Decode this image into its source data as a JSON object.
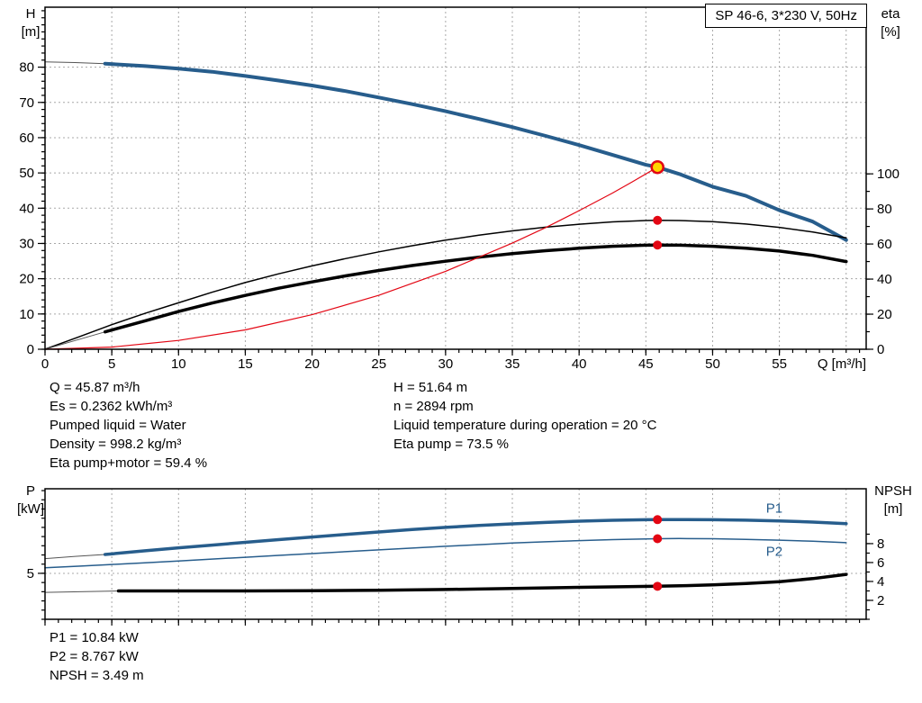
{
  "title_box": "SP 46-6, 3*230 V, 50Hz",
  "info_top": {
    "left": [
      "Q = 45.87 m³/h",
      "Es = 0.2362 kWh/m³",
      "Pumped liquid = Water",
      "Density = 998.2 kg/m³",
      "Eta pump+motor = 59.4 %"
    ],
    "right": [
      "H = 51.64 m",
      "n = 2894 rpm",
      "Liquid temperature during operation = 20 °C",
      "Eta pump = 73.5 %"
    ]
  },
  "info_bottom": [
    "P1 = 10.84 kW",
    "P2 = 8.767 kW",
    "NPSH = 3.49 m"
  ],
  "colors": {
    "blue": "#275d8c",
    "black": "#000000",
    "red": "#e30613",
    "gray": "#555555",
    "grid": "#a8a8a8",
    "marker_fill": "#ffd500"
  },
  "chart_data": [
    {
      "type": "line",
      "name": "performance",
      "x_axis": {
        "label": "Q [m³/h]",
        "min": 0,
        "max": 61.5,
        "labeled_ticks": [
          0,
          5,
          10,
          15,
          20,
          25,
          30,
          35,
          40,
          45,
          50,
          55
        ],
        "minor_step": 1,
        "grid_ticks": [
          5,
          10,
          15,
          20,
          25,
          30,
          35,
          40,
          45,
          50,
          55,
          60
        ],
        "show_labels": true
      },
      "y_left": {
        "label": "H",
        "unit": "[m]",
        "min": 0,
        "max": 97,
        "labeled_ticks": [
          0,
          10,
          20,
          30,
          40,
          50,
          60,
          70,
          80
        ],
        "minor_step": 2,
        "minor_max": 96,
        "grid_ticks": [
          10,
          20,
          30,
          40,
          50,
          60,
          70,
          80
        ]
      },
      "y_right": {
        "label": "eta",
        "unit": "[%]",
        "min": 0,
        "max": 195,
        "labeled_ticks": [
          0,
          20,
          40,
          60,
          80,
          100
        ],
        "minor_step": 10,
        "minor_max": 100
      },
      "series": [
        {
          "name": "head-curve-extension",
          "axis": "left",
          "color": "gray",
          "width": 1,
          "points": [
            [
              0,
              81.5
            ],
            [
              2.25,
              81.3
            ],
            [
              4.5,
              81.0
            ]
          ]
        },
        {
          "name": "head-curve",
          "axis": "left",
          "color": "blue",
          "width": 4,
          "points": [
            [
              4.5,
              81.0
            ],
            [
              7.5,
              80.3
            ],
            [
              10,
              79.6
            ],
            [
              12.5,
              78.7
            ],
            [
              15,
              77.5
            ],
            [
              17.5,
              76.2
            ],
            [
              20,
              74.8
            ],
            [
              22.5,
              73.2
            ],
            [
              25,
              71.4
            ],
            [
              27.5,
              69.5
            ],
            [
              30,
              67.5
            ],
            [
              32.5,
              65.3
            ],
            [
              35,
              63.0
            ],
            [
              37.5,
              60.5
            ],
            [
              40,
              57.9
            ],
            [
              42.5,
              55.1
            ],
            [
              45,
              52.3
            ],
            [
              45.87,
              51.64
            ],
            [
              47.5,
              49.7
            ],
            [
              50,
              46.1
            ],
            [
              52.5,
              43.5
            ],
            [
              55,
              39.4
            ],
            [
              57.5,
              36.2
            ],
            [
              60,
              31.0
            ]
          ]
        },
        {
          "name": "eta-pump-curve",
          "axis": "right",
          "color": "black",
          "width": 1.5,
          "points": [
            [
              0,
              0
            ],
            [
              2.5,
              7
            ],
            [
              5,
              14
            ],
            [
              7.5,
              20.5
            ],
            [
              10,
              26.5
            ],
            [
              12.5,
              32.5
            ],
            [
              15,
              38
            ],
            [
              17.5,
              43
            ],
            [
              20,
              47.5
            ],
            [
              22.5,
              51.7
            ],
            [
              25,
              55.5
            ],
            [
              27.5,
              59
            ],
            [
              30,
              62.2
            ],
            [
              32.5,
              65
            ],
            [
              35,
              67.5
            ],
            [
              37.5,
              69.6
            ],
            [
              40,
              71.3
            ],
            [
              42.5,
              72.6
            ],
            [
              45,
              73.4
            ],
            [
              45.87,
              73.5
            ],
            [
              47.5,
              73.4
            ],
            [
              50,
              72.7
            ],
            [
              52.5,
              71.4
            ],
            [
              55,
              69.5
            ],
            [
              57.5,
              66.8
            ],
            [
              60,
              63.5
            ]
          ]
        },
        {
          "name": "eta-pump-motor-extension",
          "axis": "right",
          "color": "gray",
          "width": 1,
          "points": [
            [
              0,
              0
            ],
            [
              2.25,
              5
            ],
            [
              4.5,
              9.9
            ]
          ]
        },
        {
          "name": "eta-pump-motor-curve",
          "axis": "right",
          "color": "black",
          "width": 3.5,
          "points": [
            [
              4.5,
              9.9
            ],
            [
              7.5,
              16.2
            ],
            [
              10,
              21.5
            ],
            [
              12.5,
              26.3
            ],
            [
              15,
              30.7
            ],
            [
              17.5,
              34.8
            ],
            [
              20,
              38.4
            ],
            [
              22.5,
              41.8
            ],
            [
              25,
              44.9
            ],
            [
              27.5,
              47.7
            ],
            [
              30,
              50.2
            ],
            [
              32.5,
              52.5
            ],
            [
              35,
              54.5
            ],
            [
              37.5,
              56.2
            ],
            [
              40,
              57.6
            ],
            [
              42.5,
              58.7
            ],
            [
              45,
              59.3
            ],
            [
              45.87,
              59.4
            ],
            [
              47.5,
              59.3
            ],
            [
              50,
              58.7
            ],
            [
              52.5,
              57.6
            ],
            [
              55,
              56.0
            ],
            [
              57.5,
              53.5
            ],
            [
              60,
              50.0
            ]
          ]
        },
        {
          "name": "system-curve",
          "axis": "left",
          "color": "red",
          "width": 1.2,
          "points": [
            [
              0,
              0
            ],
            [
              5,
              0.6
            ],
            [
              10,
              2.5
            ],
            [
              15,
              5.5
            ],
            [
              20,
              9.8
            ],
            [
              25,
              15.3
            ],
            [
              30,
              22.1
            ],
            [
              35,
              30.1
            ],
            [
              37.5,
              34.5
            ],
            [
              40,
              39.3
            ],
            [
              42.5,
              44.3
            ],
            [
              44,
              47.5
            ],
            [
              45.87,
              51.64
            ]
          ]
        }
      ],
      "markers": [
        {
          "name": "duty-point-marker",
          "q": 45.87,
          "value": 51.64,
          "axis": "left",
          "style": "duty"
        },
        {
          "name": "eta-pump-marker",
          "q": 45.87,
          "value": 73.5,
          "axis": "right",
          "style": "dot"
        },
        {
          "name": "eta-pump-motor-marker",
          "q": 45.87,
          "value": 59.4,
          "axis": "right",
          "style": "dot"
        }
      ],
      "annotations": []
    },
    {
      "type": "line",
      "name": "power-npsh",
      "x_axis": {
        "label": "",
        "min": 0,
        "max": 61.5,
        "labeled_ticks": [
          0,
          5,
          10,
          15,
          20,
          25,
          30,
          35,
          40,
          45,
          50,
          55
        ],
        "minor_step": 1,
        "grid_ticks": [
          5,
          10,
          15,
          20,
          25,
          30,
          35,
          40,
          45,
          50,
          55,
          60
        ],
        "show_labels": false
      },
      "y_left": {
        "label": "P",
        "unit": "[kW]",
        "min": 0,
        "max": 14.2,
        "labeled_ticks": [
          5
        ],
        "minor_step": 1,
        "minor_max": 14,
        "grid_ticks": [
          5
        ]
      },
      "y_right": {
        "label": "NPSH",
        "unit": "[m]",
        "min": 0,
        "max": 13.8,
        "labeled_ticks": [
          2,
          4,
          6,
          8
        ],
        "minor_step": 1,
        "minor_max": 9
      },
      "series": [
        {
          "name": "p1-extension",
          "axis": "left",
          "color": "gray",
          "width": 1,
          "points": [
            [
              0,
              6.6
            ],
            [
              2.25,
              6.85
            ],
            [
              4.5,
              7.05
            ]
          ]
        },
        {
          "name": "p1-curve",
          "axis": "left",
          "color": "blue",
          "width": 3.5,
          "points": [
            [
              4.5,
              7.05
            ],
            [
              7.5,
              7.45
            ],
            [
              10,
              7.78
            ],
            [
              12.5,
              8.07
            ],
            [
              15,
              8.37
            ],
            [
              17.5,
              8.67
            ],
            [
              20,
              8.95
            ],
            [
              22.5,
              9.23
            ],
            [
              25,
              9.5
            ],
            [
              27.5,
              9.76
            ],
            [
              30,
              10.0
            ],
            [
              32.5,
              10.2
            ],
            [
              35,
              10.38
            ],
            [
              37.5,
              10.54
            ],
            [
              40,
              10.67
            ],
            [
              42.5,
              10.77
            ],
            [
              45,
              10.83
            ],
            [
              45.87,
              10.84
            ],
            [
              47.5,
              10.85
            ],
            [
              50,
              10.83
            ],
            [
              52.5,
              10.78
            ],
            [
              55,
              10.7
            ],
            [
              57.5,
              10.58
            ],
            [
              60,
              10.4
            ]
          ]
        },
        {
          "name": "p2-curve",
          "axis": "left",
          "color": "blue",
          "width": 1.5,
          "points": [
            [
              0,
              5.6
            ],
            [
              2.5,
              5.78
            ],
            [
              5,
              5.96
            ],
            [
              7.5,
              6.15
            ],
            [
              10,
              6.35
            ],
            [
              12.5,
              6.55
            ],
            [
              15,
              6.75
            ],
            [
              17.5,
              6.95
            ],
            [
              20,
              7.15
            ],
            [
              22.5,
              7.35
            ],
            [
              25,
              7.55
            ],
            [
              27.5,
              7.75
            ],
            [
              30,
              7.94
            ],
            [
              32.5,
              8.12
            ],
            [
              35,
              8.29
            ],
            [
              37.5,
              8.43
            ],
            [
              40,
              8.56
            ],
            [
              42.5,
              8.67
            ],
            [
              45,
              8.75
            ],
            [
              45.87,
              8.767
            ],
            [
              47.5,
              8.78
            ],
            [
              50,
              8.76
            ],
            [
              52.5,
              8.7
            ],
            [
              55,
              8.61
            ],
            [
              57.5,
              8.49
            ],
            [
              60,
              8.33
            ]
          ]
        },
        {
          "name": "npsh-extension",
          "axis": "right",
          "color": "gray",
          "width": 1,
          "points": [
            [
              0,
              2.85
            ],
            [
              3,
              2.93
            ],
            [
              5.5,
              3.0
            ]
          ]
        },
        {
          "name": "npsh-curve",
          "axis": "right",
          "color": "black",
          "width": 3.5,
          "points": [
            [
              5.5,
              3.0
            ],
            [
              10,
              3.0
            ],
            [
              15,
              3.0
            ],
            [
              20,
              3.02
            ],
            [
              25,
              3.07
            ],
            [
              30,
              3.15
            ],
            [
              35,
              3.26
            ],
            [
              40,
              3.38
            ],
            [
              43,
              3.44
            ],
            [
              45.87,
              3.49
            ],
            [
              48,
              3.56
            ],
            [
              50,
              3.64
            ],
            [
              52.5,
              3.78
            ],
            [
              55,
              3.98
            ],
            [
              57.5,
              4.3
            ],
            [
              60,
              4.75
            ]
          ]
        }
      ],
      "markers": [
        {
          "name": "p1-marker",
          "q": 45.87,
          "value": 10.84,
          "axis": "left",
          "style": "dot"
        },
        {
          "name": "p2-marker",
          "q": 45.87,
          "value": 8.767,
          "axis": "left",
          "style": "dot"
        },
        {
          "name": "npsh-marker",
          "q": 45.87,
          "value": 3.49,
          "axis": "right",
          "style": "dot"
        }
      ],
      "annotations": [
        {
          "name": "p1-label",
          "text": "P1",
          "q": 54,
          "value": 11.6,
          "axis": "left",
          "color": "blue"
        },
        {
          "name": "p2-label",
          "text": "P2",
          "q": 54,
          "value": 6.9,
          "axis": "left",
          "color": "blue"
        }
      ]
    }
  ]
}
